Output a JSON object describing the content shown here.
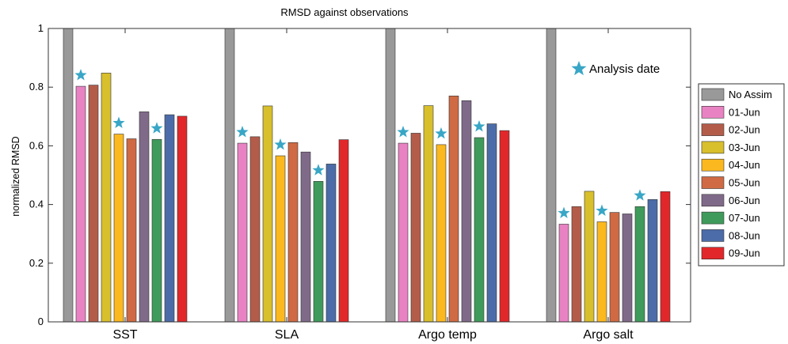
{
  "chart_data": {
    "type": "bar",
    "title": "RMSD against observations",
    "xlabel": "",
    "ylabel": "normalized RMSD",
    "ylim": [
      0,
      1
    ],
    "yticks": [
      "0",
      "0.2",
      "0.4",
      "0.6",
      "0.8",
      "1"
    ],
    "grid": false,
    "legend_position": "right",
    "categories": [
      "SST",
      "SLA",
      "Argo temp",
      "Argo salt"
    ],
    "series": [
      {
        "name": "No Assim",
        "color": "#999999",
        "values": [
          1.0,
          1.0,
          1.0,
          1.0
        ]
      },
      {
        "name": "01-Jun",
        "color": "#e882c2",
        "values": [
          0.803,
          0.609,
          0.609,
          0.333
        ]
      },
      {
        "name": "02-Jun",
        "color": "#b45c4a",
        "values": [
          0.807,
          0.631,
          0.643,
          0.393
        ]
      },
      {
        "name": "03-Jun",
        "color": "#d8bf2c",
        "values": [
          0.848,
          0.736,
          0.737,
          0.445
        ]
      },
      {
        "name": "04-Jun",
        "color": "#fbb81f",
        "values": [
          0.64,
          0.566,
          0.604,
          0.341
        ]
      },
      {
        "name": "05-Jun",
        "color": "#cf6a44",
        "values": [
          0.624,
          0.611,
          0.77,
          0.373
        ]
      },
      {
        "name": "06-Jun",
        "color": "#806a89",
        "values": [
          0.716,
          0.579,
          0.754,
          0.368
        ]
      },
      {
        "name": "07-Jun",
        "color": "#3f9b5b",
        "values": [
          0.622,
          0.479,
          0.628,
          0.393
        ]
      },
      {
        "name": "08-Jun",
        "color": "#4b6ca8",
        "values": [
          0.706,
          0.538,
          0.675,
          0.417
        ]
      },
      {
        "name": "09-Jun",
        "color": "#e2272a",
        "values": [
          0.701,
          0.621,
          0.652,
          0.444
        ]
      }
    ],
    "analysis_markers": [
      {
        "category": "SST",
        "series": [
          "01-Jun",
          "04-Jun",
          "07-Jun"
        ]
      },
      {
        "category": "SLA",
        "series": [
          "01-Jun",
          "04-Jun",
          "07-Jun"
        ]
      },
      {
        "category": "Argo temp",
        "series": [
          "01-Jun",
          "04-Jun",
          "07-Jun"
        ]
      },
      {
        "category": "Argo salt",
        "series": [
          "01-Jun",
          "04-Jun",
          "07-Jun"
        ]
      }
    ],
    "annotation": {
      "label": "Analysis date",
      "marker": "star-icon",
      "color": "#39a6c6"
    }
  }
}
